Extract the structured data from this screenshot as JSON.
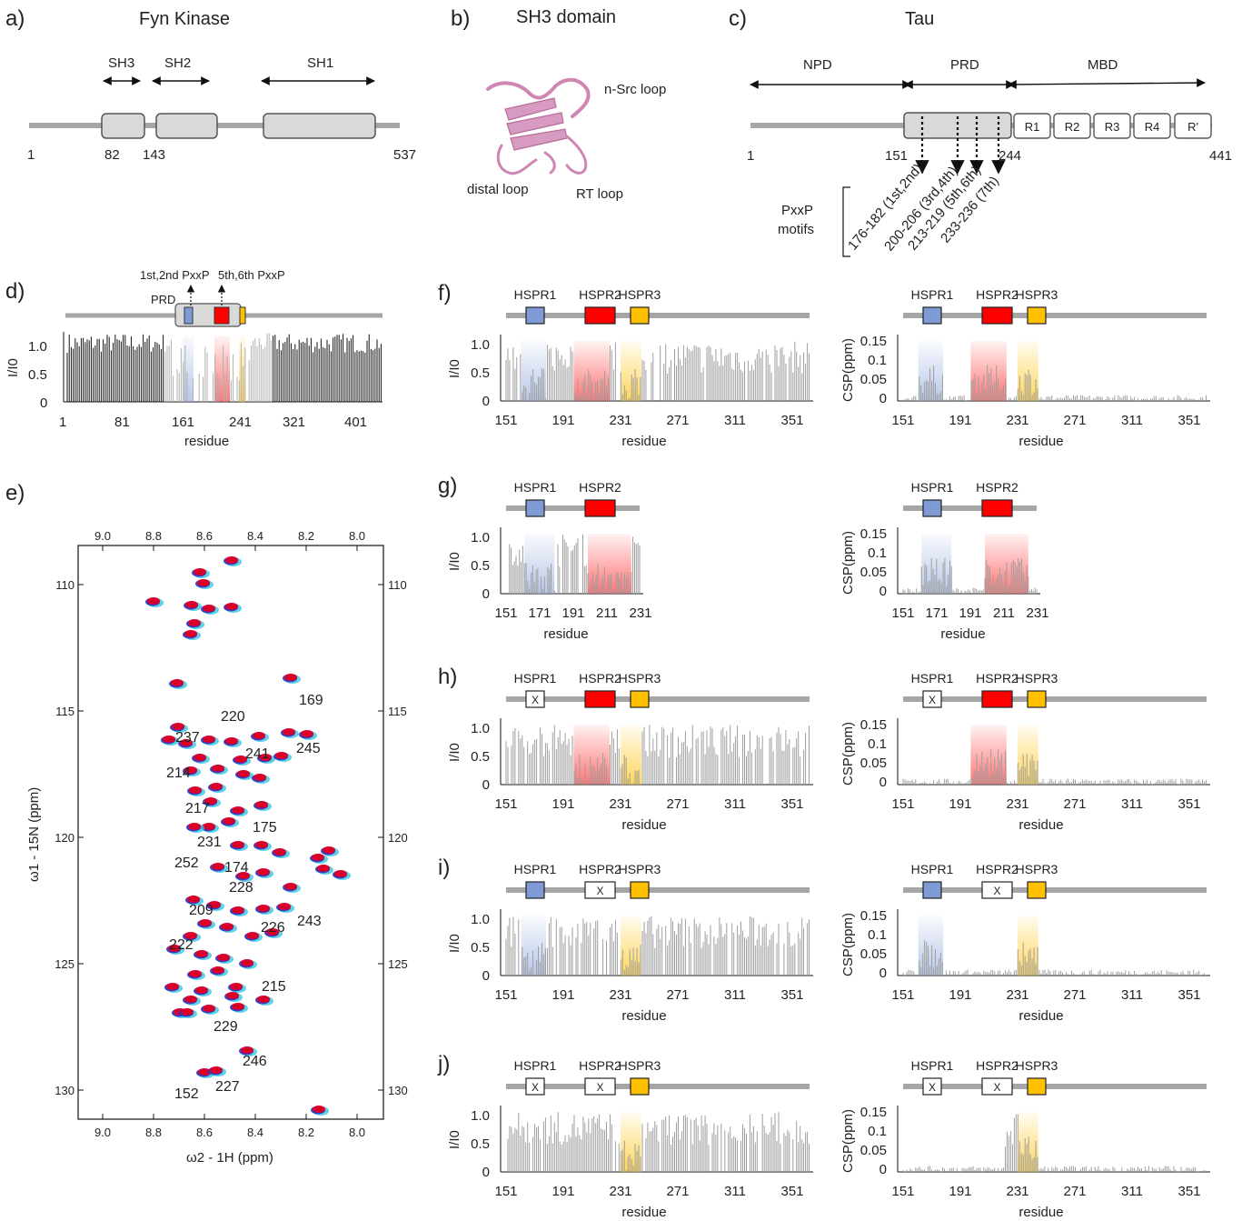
{
  "panels": {
    "a": {
      "letter": "a)",
      "title": "Fyn Kinase",
      "domains": [
        "SH3",
        "SH2",
        "SH1"
      ],
      "positions": [
        "1",
        "82",
        "143",
        "537"
      ]
    },
    "b": {
      "letter": "b)",
      "title": "SH3 domain",
      "loops": [
        "n-Src loop",
        "distal loop",
        "RT loop"
      ]
    },
    "c": {
      "letter": "c)",
      "title": "Tau",
      "regions": [
        "NPD",
        "PRD",
        "MBD"
      ],
      "repeats": [
        "R1",
        "R2",
        "R3",
        "R4",
        "R'"
      ],
      "positions": [
        "1",
        "151",
        "244",
        "441"
      ],
      "motif_label": [
        "PxxP",
        "motifs"
      ],
      "motifs": [
        "176-182 (1st,2nd)",
        "200-206 (3rd,4th)",
        "213-219 (5th,6th)",
        "233-236 (7th)"
      ]
    },
    "d": {
      "letter": "d)",
      "prd_label": "PRD",
      "pxxp_labels": [
        "1st,2nd PxxP",
        "5th,6th PxxP"
      ],
      "ylabel": "I/I0",
      "yticks": [
        "1.0",
        "0.5",
        "0"
      ],
      "xticks": [
        "1",
        "81",
        "161",
        "241",
        "321",
        "401"
      ],
      "xlabel": "residue"
    },
    "e": {
      "letter": "e)",
      "top_ticks": [
        "9.0",
        "8.8",
        "8.6",
        "8.4",
        "8.2",
        "8.0"
      ],
      "bottom_ticks": [
        "9.0",
        "8.8",
        "8.6",
        "8.4",
        "8.2",
        "8.0"
      ],
      "y_ticks": [
        "110",
        "115",
        "120",
        "125",
        "130"
      ],
      "xlabel": "ω2 - 1H  (ppm)",
      "ylabel": "ω1 - 15N  (ppm)",
      "assignments": [
        "169",
        "220",
        "237",
        "245",
        "241",
        "214",
        "217",
        "175",
        "231",
        "252",
        "174",
        "228",
        "209",
        "243",
        "226",
        "222",
        "215",
        "229",
        "246",
        "152",
        "227"
      ]
    },
    "rows": [
      {
        "letter": "f)",
        "hspr": [
          "HSPR1",
          "HSPR2",
          "HSPR3"
        ],
        "blocked": [],
        "xticks": [
          "151",
          "191",
          "231",
          "271",
          "311",
          "351"
        ]
      },
      {
        "letter": "g)",
        "hspr": [
          "HSPR1",
          "HSPR2"
        ],
        "blocked": [],
        "xticks": [
          "151",
          "171",
          "191",
          "211",
          "231"
        ]
      },
      {
        "letter": "h)",
        "hspr": [
          "HSPR1",
          "HSPR2",
          "HSPR3"
        ],
        "blocked": [
          "HSPR1"
        ],
        "xticks": [
          "151",
          "191",
          "231",
          "271",
          "311",
          "351"
        ]
      },
      {
        "letter": "i)",
        "hspr": [
          "HSPR1",
          "HSPR2",
          "HSPR3"
        ],
        "blocked": [
          "HSPR2"
        ],
        "xticks": [
          "151",
          "191",
          "231",
          "271",
          "311",
          "351"
        ]
      },
      {
        "letter": "j)",
        "hspr": [
          "HSPR1",
          "HSPR2",
          "HSPR3"
        ],
        "blocked": [
          "HSPR1",
          "HSPR2"
        ],
        "xticks": [
          "151",
          "191",
          "231",
          "271",
          "311",
          "351"
        ]
      }
    ],
    "common": {
      "ii_label": "I/I0",
      "ii_ticks": [
        "1.0",
        "0.5",
        "0"
      ],
      "csp_label": "CSP(ppm)",
      "csp_ticks": [
        "0.15",
        "0.1",
        "0.05",
        "0"
      ],
      "xlabel": "residue",
      "blocked_mark": "X"
    }
  },
  "colors": {
    "hspr1": "#7f9bd6",
    "hspr2": "#ff0000",
    "hspr3": "#ffc000",
    "bar": "#9e9e9e",
    "track": "#a6a6a6",
    "domain_fill": "#d9d9d9"
  }
}
